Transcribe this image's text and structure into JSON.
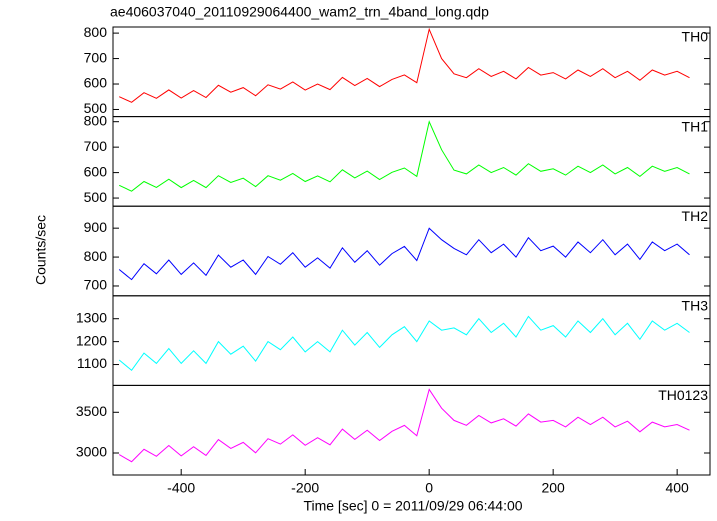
{
  "title": "ae406037040_20110929064400_wam2_trn_4band_long.qdp",
  "xlabel": "Time [sec] 0 = 2011/09/29 06:44:00",
  "ylabel": "Counts/sec",
  "chart_data": [
    {
      "type": "line",
      "name": "TH0",
      "color": "#ff0000",
      "xlim": [
        -510,
        453
      ],
      "ylim": [
        472,
        824
      ],
      "yticks": [
        500,
        600,
        700,
        800
      ],
      "x": [
        -500,
        -480,
        -460,
        -440,
        -420,
        -400,
        -380,
        -360,
        -340,
        -320,
        -300,
        -280,
        -260,
        -240,
        -220,
        -200,
        -180,
        -160,
        -140,
        -120,
        -100,
        -80,
        -60,
        -40,
        -20,
        0,
        20,
        40,
        60,
        80,
        100,
        120,
        140,
        160,
        180,
        200,
        220,
        240,
        260,
        280,
        300,
        320,
        340,
        360,
        380,
        400,
        420
      ],
      "values": [
        550,
        528,
        566,
        544,
        577,
        545,
        574,
        547,
        595,
        568,
        586,
        554,
        597,
        580,
        608,
        576,
        600,
        578,
        626,
        594,
        622,
        590,
        618,
        636,
        605,
        815,
        700,
        640,
        625,
        660,
        630,
        650,
        620,
        665,
        635,
        645,
        620,
        655,
        630,
        660,
        625,
        650,
        615,
        655,
        635,
        650,
        625
      ]
    },
    {
      "type": "line",
      "name": "TH1",
      "color": "#00ff00",
      "xlim": [
        -510,
        453
      ],
      "ylim": [
        468,
        820
      ],
      "yticks": [
        500,
        600,
        700,
        800
      ],
      "x": [
        -500,
        -480,
        -460,
        -440,
        -420,
        -400,
        -380,
        -360,
        -340,
        -320,
        -300,
        -280,
        -260,
        -240,
        -220,
        -200,
        -180,
        -160,
        -140,
        -120,
        -100,
        -80,
        -60,
        -40,
        -20,
        0,
        20,
        40,
        60,
        80,
        100,
        120,
        140,
        160,
        180,
        200,
        220,
        240,
        260,
        280,
        300,
        320,
        340,
        360,
        380,
        400,
        420
      ],
      "values": [
        550,
        527,
        565,
        542,
        574,
        541,
        569,
        541,
        588,
        561,
        578,
        545,
        588,
        570,
        597,
        565,
        587,
        564,
        611,
        579,
        606,
        573,
        601,
        618,
        585,
        800,
        690,
        610,
        595,
        630,
        600,
        620,
        590,
        635,
        605,
        615,
        590,
        625,
        600,
        630,
        595,
        620,
        585,
        625,
        605,
        620,
        595
      ]
    },
    {
      "type": "line",
      "name": "TH2",
      "color": "#0000ff",
      "xlim": [
        -510,
        453
      ],
      "ylim": [
        666,
        976
      ],
      "yticks": [
        700,
        800,
        900
      ],
      "x": [
        -500,
        -480,
        -460,
        -440,
        -420,
        -400,
        -380,
        -360,
        -340,
        -320,
        -300,
        -280,
        -260,
        -240,
        -220,
        -200,
        -180,
        -160,
        -140,
        -120,
        -100,
        -80,
        -60,
        -40,
        -20,
        0,
        20,
        40,
        60,
        80,
        100,
        120,
        140,
        160,
        180,
        200,
        220,
        240,
        260,
        280,
        300,
        320,
        340,
        360,
        380,
        400,
        420
      ],
      "values": [
        757,
        722,
        777,
        742,
        790,
        740,
        780,
        737,
        807,
        765,
        790,
        740,
        802,
        775,
        815,
        765,
        797,
        762,
        832,
        782,
        822,
        772,
        812,
        837,
        788,
        900,
        860,
        830,
        808,
        860,
        815,
        845,
        800,
        867,
        822,
        838,
        800,
        852,
        815,
        860,
        808,
        845,
        792,
        852,
        822,
        845,
        808
      ]
    },
    {
      "type": "line",
      "name": "TH3",
      "color": "#00ffff",
      "xlim": [
        -510,
        453
      ],
      "ylim": [
        1009,
        1400
      ],
      "yticks": [
        1100,
        1200,
        1300
      ],
      "x": [
        -500,
        -480,
        -460,
        -440,
        -420,
        -400,
        -380,
        -360,
        -340,
        -320,
        -300,
        -280,
        -260,
        -240,
        -220,
        -200,
        -180,
        -160,
        -140,
        -120,
        -100,
        -80,
        -60,
        -40,
        -20,
        0,
        20,
        40,
        60,
        80,
        100,
        120,
        140,
        160,
        180,
        200,
        220,
        240,
        260,
        280,
        300,
        320,
        340,
        360,
        380,
        400,
        420
      ],
      "values": [
        1120,
        1075,
        1150,
        1105,
        1170,
        1105,
        1160,
        1105,
        1200,
        1145,
        1180,
        1115,
        1200,
        1165,
        1220,
        1155,
        1200,
        1155,
        1250,
        1185,
        1240,
        1175,
        1230,
        1265,
        1200,
        1290,
        1250,
        1260,
        1230,
        1300,
        1240,
        1280,
        1220,
        1310,
        1250,
        1270,
        1220,
        1290,
        1240,
        1300,
        1230,
        1280,
        1210,
        1290,
        1250,
        1280,
        1240
      ]
    },
    {
      "type": "line",
      "name": "TH0123",
      "color": "#ff00ff",
      "xlim": [
        -510,
        453
      ],
      "ylim": [
        2730,
        3830
      ],
      "yticks": [
        3000,
        3500
      ],
      "xticks": [
        -400,
        -200,
        0,
        200,
        400
      ],
      "x": [
        -500,
        -480,
        -460,
        -440,
        -420,
        -400,
        -380,
        -360,
        -340,
        -320,
        -300,
        -280,
        -260,
        -240,
        -220,
        -200,
        -180,
        -160,
        -140,
        -120,
        -100,
        -80,
        -60,
        -40,
        -20,
        0,
        20,
        40,
        60,
        80,
        100,
        120,
        140,
        160,
        180,
        200,
        220,
        240,
        260,
        280,
        300,
        320,
        340,
        360,
        380,
        400,
        420
      ],
      "values": [
        2980,
        2893,
        3046,
        2959,
        3092,
        2965,
        3078,
        2971,
        3164,
        3057,
        3130,
        3003,
        3176,
        3109,
        3222,
        3095,
        3188,
        3101,
        3294,
        3167,
        3280,
        3153,
        3266,
        3339,
        3212,
        3780,
        3550,
        3400,
        3340,
        3460,
        3370,
        3420,
        3330,
        3480,
        3380,
        3400,
        3320,
        3440,
        3350,
        3440,
        3320,
        3390,
        3260,
        3380,
        3320,
        3350,
        3280
      ]
    }
  ]
}
